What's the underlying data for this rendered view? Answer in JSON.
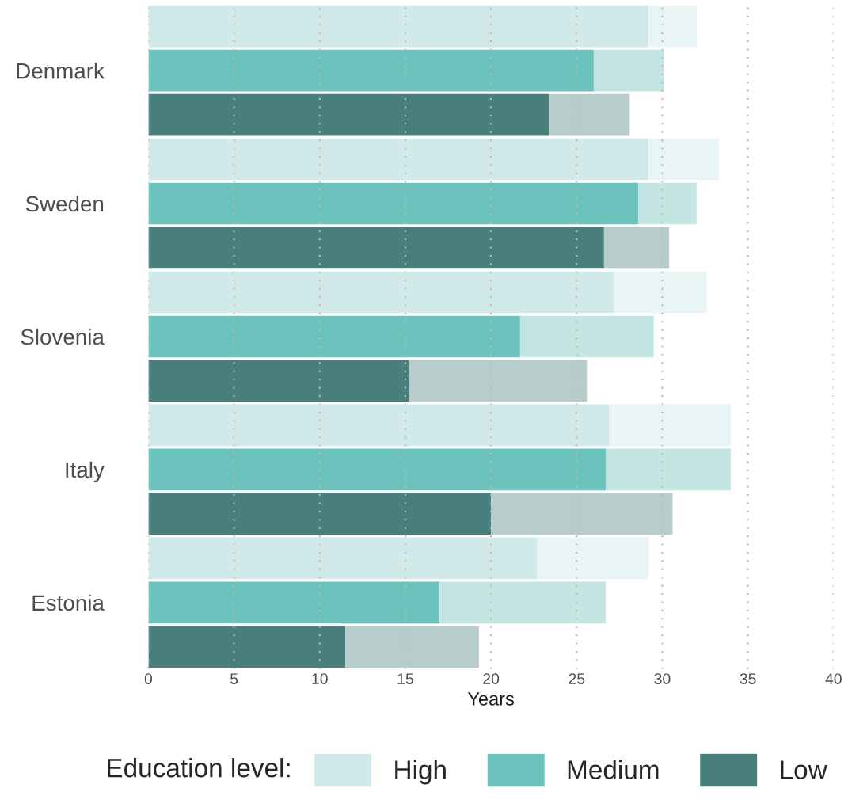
{
  "chart_data": {
    "type": "bar",
    "orientation": "horizontal",
    "stacked": true,
    "xlabel": "Years",
    "legend_title": "Education level:",
    "legend": "bottom",
    "grid": "x",
    "categories": [
      null,
      "Denmark",
      null,
      null,
      "Sweden",
      null,
      null,
      "Slovenia",
      null,
      null,
      "Italy",
      null,
      null,
      "Estonia",
      null
    ],
    "xlim": [
      0,
      40
    ],
    "xticks": [
      0,
      5,
      10,
      15,
      20,
      25,
      30,
      35,
      40
    ],
    "series": [
      {
        "name": "High",
        "color": "#d1eae9",
        "values": [
          29.2,
          null,
          null,
          29.2,
          null,
          null,
          27.2,
          null,
          null,
          26.9,
          null,
          null,
          22.7,
          null,
          null
        ]
      },
      {
        "name": "Medium",
        "color": "#6cc3bd",
        "values": [
          null,
          26.0,
          null,
          null,
          28.6,
          null,
          null,
          21.7,
          null,
          null,
          26.7,
          null,
          null,
          17.0,
          null
        ]
      },
      {
        "name": "Low",
        "color": "#487f7c",
        "values": [
          null,
          null,
          23.4,
          null,
          null,
          26.6,
          null,
          null,
          15.2,
          null,
          null,
          20.0,
          null,
          null,
          11.5
        ]
      },
      {
        "color": "#e9f5f4",
        "values": [
          2.8,
          null,
          null,
          4.1,
          null,
          null,
          5.4,
          null,
          null,
          7.1,
          null,
          null,
          6.5,
          null,
          null
        ]
      },
      {
        "color": "#c4e6e3",
        "values": [
          null,
          4.1,
          null,
          null,
          3.4,
          null,
          null,
          7.8,
          null,
          null,
          7.3,
          null,
          null,
          9.7,
          null
        ]
      },
      {
        "color": "#b7cdcb",
        "values": [
          null,
          null,
          4.7,
          null,
          null,
          3.8,
          null,
          null,
          10.4,
          null,
          null,
          10.6,
          null,
          null,
          7.8
        ]
      }
    ]
  }
}
